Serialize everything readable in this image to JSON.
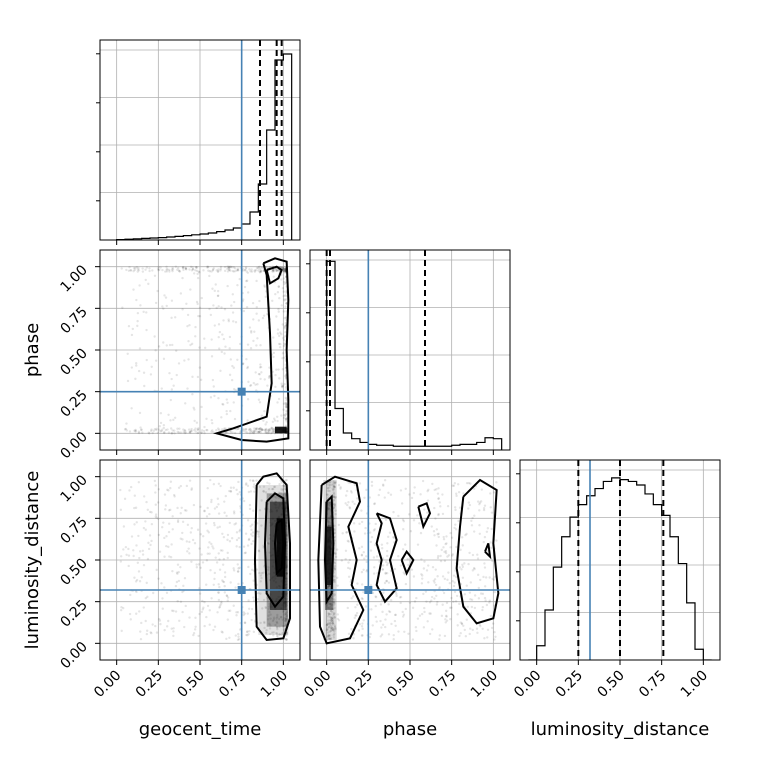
{
  "chart_data": {
    "type": "corner",
    "parameters": [
      "geocent_time",
      "phase",
      "luminosity_distance"
    ],
    "axis_range": [
      -0.1,
      1.1
    ],
    "ticks": [
      0.0,
      0.25,
      0.5,
      0.75,
      1.0
    ],
    "tick_labels": [
      "0.00",
      "0.25",
      "0.50",
      "0.75",
      "1.00"
    ],
    "grid": true,
    "truth_color": "#4682b4",
    "truths": {
      "geocent_time": 0.75,
      "phase": 0.25,
      "luminosity_distance": 0.32
    },
    "quantiles": {
      "geocent_time": [
        0.86,
        0.96,
        0.99
      ],
      "phase": [
        0.0,
        0.02,
        0.59
      ],
      "luminosity_distance": [
        0.25,
        0.5,
        0.76
      ]
    },
    "histograms": {
      "geocent_time": {
        "edges": [
          0.0,
          0.05,
          0.1,
          0.15,
          0.2,
          0.25,
          0.3,
          0.35,
          0.4,
          0.45,
          0.5,
          0.55,
          0.6,
          0.65,
          0.7,
          0.75,
          0.8,
          0.85,
          0.9,
          0.95,
          1.0,
          1.05
        ],
        "counts": [
          0.002,
          0.004,
          0.006,
          0.008,
          0.01,
          0.012,
          0.015,
          0.018,
          0.022,
          0.026,
          0.03,
          0.035,
          0.042,
          0.05,
          0.06,
          0.08,
          0.14,
          0.28,
          0.55,
          0.9,
          0.93
        ],
        "ymax": 1.0
      },
      "phase": {
        "edges": [
          0.0,
          0.05,
          0.1,
          0.15,
          0.2,
          0.25,
          0.3,
          0.35,
          0.4,
          0.45,
          0.5,
          0.55,
          0.6,
          0.65,
          0.7,
          0.75,
          0.8,
          0.85,
          0.9,
          0.95,
          1.0,
          1.05
        ],
        "counts": [
          1.0,
          0.22,
          0.09,
          0.06,
          0.04,
          0.03,
          0.025,
          0.025,
          0.02,
          0.02,
          0.02,
          0.02,
          0.02,
          0.02,
          0.02,
          0.025,
          0.03,
          0.03,
          0.04,
          0.065,
          0.06
        ],
        "ymax": 1.06
      },
      "luminosity_distance": {
        "edges": [
          -0.05,
          0.0,
          0.05,
          0.1,
          0.15,
          0.2,
          0.25,
          0.3,
          0.35,
          0.4,
          0.45,
          0.5,
          0.55,
          0.6,
          0.65,
          0.7,
          0.75,
          0.8,
          0.85,
          0.9,
          0.95,
          1.0,
          1.05
        ],
        "counts": [
          0.0,
          0.08,
          0.28,
          0.52,
          0.69,
          0.8,
          0.87,
          0.92,
          0.96,
          1.0,
          1.02,
          1.01,
          1.0,
          0.98,
          0.93,
          0.87,
          0.81,
          0.69,
          0.54,
          0.32,
          0.06,
          0.0
        ],
        "ymax": 1.12
      }
    },
    "pairs": [
      {
        "x": "geocent_time",
        "y": "phase",
        "density_blocks": [
          [
            0.95,
            0.0,
            1.02,
            0.04,
            0.9
          ]
        ],
        "contours": [
          [
            [
              0.9,
              0.98
            ],
            [
              0.92,
              0.9
            ],
            [
              0.97,
              0.93
            ],
            [
              0.99,
              0.98
            ],
            [
              0.96,
              1.0
            ],
            [
              0.9,
              0.98
            ]
          ],
          [
            [
              0.88,
              1.02
            ],
            [
              0.9,
              0.95
            ],
            [
              0.92,
              0.6
            ],
            [
              0.93,
              0.3
            ],
            [
              0.9,
              0.1
            ],
            [
              0.7,
              0.03
            ],
            [
              0.6,
              0.0
            ],
            [
              0.75,
              -0.04
            ],
            [
              0.9,
              -0.05
            ],
            [
              1.03,
              -0.03
            ],
            [
              1.03,
              0.2
            ],
            [
              1.02,
              0.5
            ],
            [
              1.03,
              0.8
            ],
            [
              1.02,
              1.03
            ],
            [
              0.95,
              1.05
            ],
            [
              0.88,
              1.02
            ]
          ]
        ]
      },
      {
        "x": "geocent_time",
        "y": "luminosity_distance",
        "density_blocks": [
          [
            0.85,
            0.05,
            1.03,
            0.95,
            0.12
          ],
          [
            0.9,
            0.1,
            1.03,
            0.9,
            0.3
          ],
          [
            0.92,
            0.2,
            1.02,
            0.85,
            0.55
          ],
          [
            0.96,
            0.4,
            1.01,
            0.75,
            0.85
          ]
        ],
        "contours": [
          [
            [
              0.84,
              0.95
            ],
            [
              0.88,
              1.0
            ],
            [
              0.96,
              1.02
            ],
            [
              1.02,
              0.95
            ],
            [
              1.04,
              0.6
            ],
            [
              1.04,
              0.15
            ],
            [
              1.0,
              0.03
            ],
            [
              0.9,
              0.02
            ],
            [
              0.84,
              0.1
            ],
            [
              0.83,
              0.5
            ],
            [
              0.84,
              0.95
            ]
          ],
          [
            [
              0.9,
              0.85
            ],
            [
              0.95,
              0.9
            ],
            [
              1.0,
              0.87
            ],
            [
              1.01,
              0.6
            ],
            [
              1.0,
              0.28
            ],
            [
              0.95,
              0.22
            ],
            [
              0.9,
              0.3
            ],
            [
              0.89,
              0.6
            ],
            [
              0.9,
              0.85
            ]
          ],
          [
            [
              0.96,
              0.72
            ],
            [
              0.99,
              0.74
            ],
            [
              1.0,
              0.6
            ],
            [
              0.99,
              0.45
            ],
            [
              0.96,
              0.42
            ],
            [
              0.95,
              0.6
            ],
            [
              0.96,
              0.72
            ]
          ]
        ]
      },
      {
        "x": "phase",
        "y": "luminosity_distance",
        "density_blocks": [
          [
            -0.02,
            0.02,
            0.06,
            0.98,
            0.15
          ],
          [
            -0.01,
            0.2,
            0.04,
            0.85,
            0.4
          ],
          [
            -0.01,
            0.35,
            0.03,
            0.7,
            0.75
          ]
        ],
        "contours": [
          [
            [
              -0.03,
              0.95
            ],
            [
              0.05,
              1.0
            ],
            [
              0.18,
              0.96
            ],
            [
              0.2,
              0.85
            ],
            [
              0.13,
              0.7
            ],
            [
              0.18,
              0.5
            ],
            [
              0.15,
              0.35
            ],
            [
              0.22,
              0.2
            ],
            [
              0.14,
              0.03
            ],
            [
              0.0,
              0.0
            ],
            [
              -0.04,
              0.1
            ],
            [
              -0.05,
              0.5
            ],
            [
              -0.03,
              0.95
            ]
          ],
          [
            [
              0.0,
              0.85
            ],
            [
              0.03,
              0.88
            ],
            [
              0.04,
              0.6
            ],
            [
              0.03,
              0.3
            ],
            [
              0.0,
              0.25
            ],
            [
              -0.01,
              0.5
            ],
            [
              0.0,
              0.85
            ]
          ],
          [
            [
              0.3,
              0.78
            ],
            [
              0.33,
              0.72
            ],
            [
              0.3,
              0.6
            ],
            [
              0.33,
              0.5
            ],
            [
              0.3,
              0.35
            ],
            [
              0.35,
              0.25
            ],
            [
              0.42,
              0.33
            ],
            [
              0.38,
              0.5
            ],
            [
              0.42,
              0.62
            ],
            [
              0.38,
              0.75
            ],
            [
              0.3,
              0.78
            ]
          ],
          [
            [
              0.55,
              0.82
            ],
            [
              0.6,
              0.84
            ],
            [
              0.62,
              0.78
            ],
            [
              0.58,
              0.7
            ],
            [
              0.55,
              0.82
            ]
          ],
          [
            [
              0.45,
              0.5
            ],
            [
              0.48,
              0.55
            ],
            [
              0.52,
              0.5
            ],
            [
              0.48,
              0.42
            ],
            [
              0.45,
              0.5
            ]
          ],
          [
            [
              0.82,
              0.88
            ],
            [
              0.92,
              0.98
            ],
            [
              1.02,
              0.92
            ],
            [
              1.0,
              0.6
            ],
            [
              1.03,
              0.3
            ],
            [
              1.0,
              0.15
            ],
            [
              0.9,
              0.12
            ],
            [
              0.82,
              0.22
            ],
            [
              0.78,
              0.45
            ],
            [
              0.8,
              0.7
            ],
            [
              0.82,
              0.88
            ]
          ],
          [
            [
              0.95,
              0.55
            ],
            [
              0.97,
              0.6
            ],
            [
              0.98,
              0.52
            ],
            [
              0.95,
              0.55
            ]
          ]
        ]
      }
    ]
  }
}
